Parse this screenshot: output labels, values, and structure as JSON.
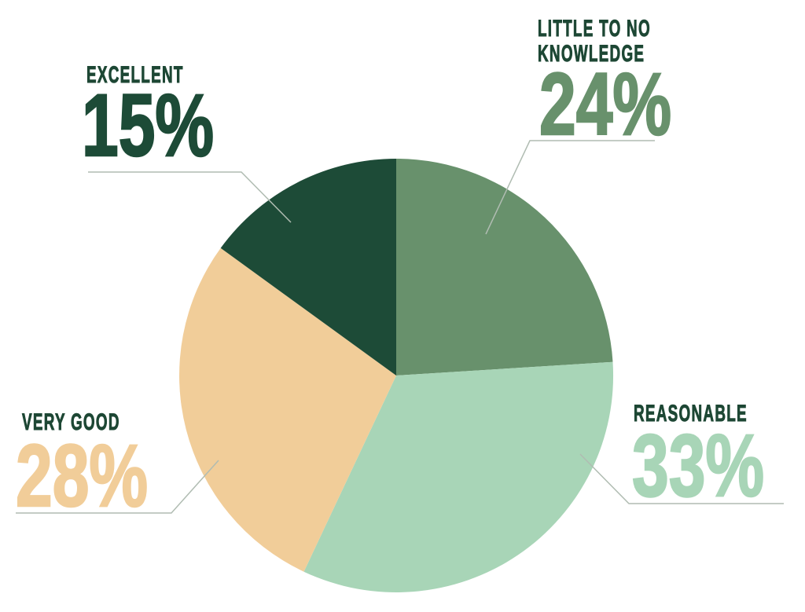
{
  "chart_data": {
    "type": "pie",
    "title": "",
    "direction": "clockwise",
    "start_angle_deg": 0,
    "legend_position": "callout-labels",
    "background": "#ffffff",
    "label_text_color": "#1d4734",
    "leader_line_color": "#b0bcb2",
    "series": [
      {
        "label": "LITTLE TO NO KNOWLEDGE",
        "label_lines": [
          "LITTLE TO NO",
          "KNOWLEDGE"
        ],
        "value": 24,
        "display": "24%",
        "color": "#68916c"
      },
      {
        "label": "REASONABLE",
        "label_lines": [
          "REASONABLE"
        ],
        "value": 33,
        "display": "33%",
        "color": "#a8d5b7"
      },
      {
        "label": "VERY GOOD",
        "label_lines": [
          "VERY GOOD"
        ],
        "value": 28,
        "display": "28%",
        "color": "#f1cd99"
      },
      {
        "label": "EXCELLENT",
        "label_lines": [
          "EXCELLENT"
        ],
        "value": 15,
        "display": "15%",
        "color": "#1d4b37"
      }
    ]
  }
}
